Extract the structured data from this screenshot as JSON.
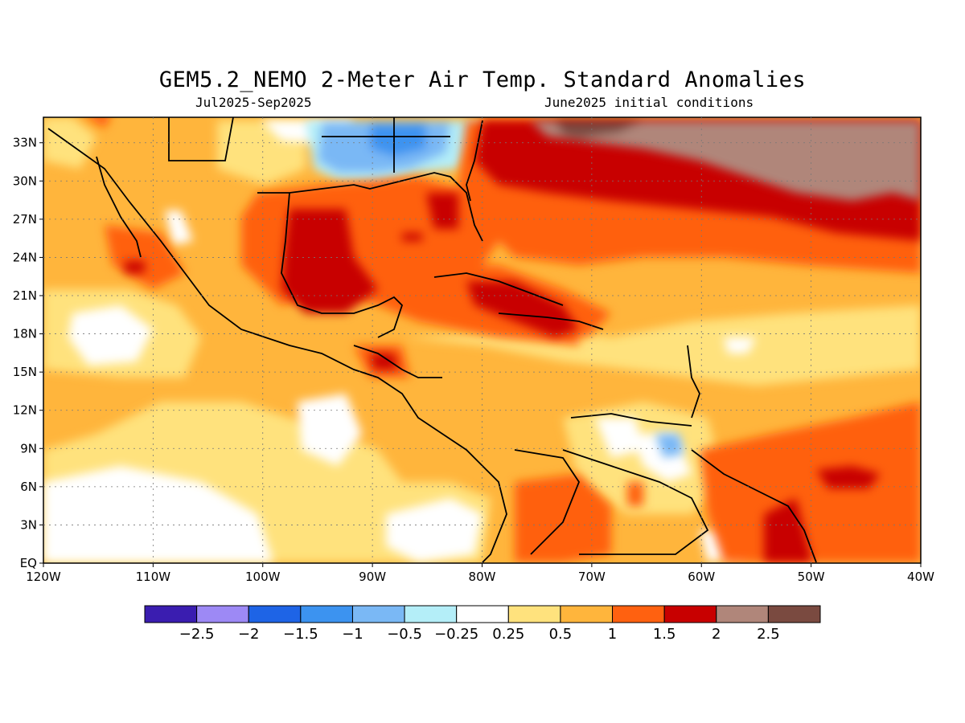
{
  "map": {
    "title": "GEM5.2_NEMO 2-Meter Air Temp. Standard Anomalies",
    "subtitle_left": "Jul2025-Sep2025",
    "subtitle_right": "June2025 initial conditions",
    "lat_labels": [
      "33N",
      "30N",
      "27N",
      "24N",
      "21N",
      "18N",
      "15N",
      "12N",
      "9N",
      "6N",
      "3N",
      "EQ"
    ],
    "lon_labels": [
      "120W",
      "110W",
      "100W",
      "90W",
      "80W",
      "70W",
      "60W",
      "50W",
      "40W"
    ],
    "colorbar": {
      "colors": [
        "#3a1db0",
        "#9d89f5",
        "#1e64e6",
        "#3c93f0",
        "#7ab8f5",
        "#b4eef8",
        "#ffffff",
        "#ffe27d",
        "#ffb53c",
        "#ff6110",
        "#c80000",
        "#b0867a",
        "#7a4a40"
      ],
      "labels": [
        "−2.5",
        "−2",
        "−1.5",
        "−1",
        "−0.5",
        "−0.25",
        "0.25",
        "0.5",
        "1",
        "1.5",
        "2",
        "2.5"
      ]
    }
  }
}
